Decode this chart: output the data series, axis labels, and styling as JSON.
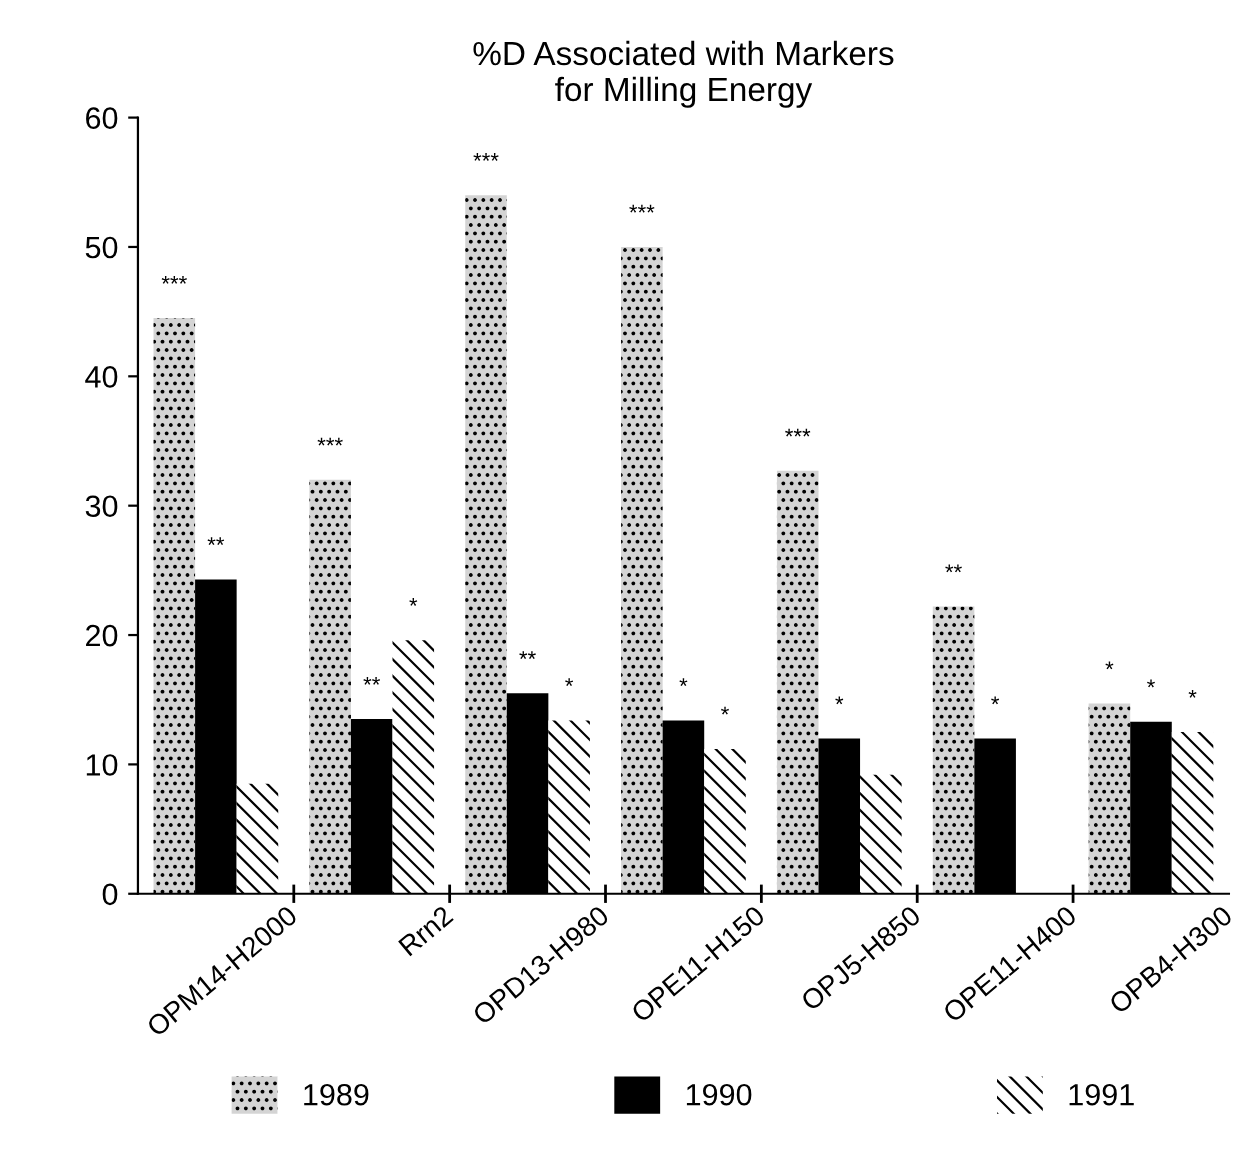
{
  "chart_data": {
    "type": "bar",
    "title": "%D Associated with Markers\nfor Milling Energy",
    "categories": [
      "OPM14-H2000",
      "Rrn2",
      "OPD13-H980",
      "OPE11-H150",
      "OPJ5-H850",
      "OPE11-H400",
      "OPB4-H300"
    ],
    "series": [
      {
        "name": "1989",
        "color": "#d4d4d4",
        "values": [
          44.5,
          32,
          54,
          50,
          32.7,
          22.2,
          14.7
        ],
        "value_labels": [
          "***",
          "***",
          "***",
          "***",
          "***",
          "**",
          "*"
        ]
      },
      {
        "name": "1990",
        "color": "#000000",
        "values": [
          24.3,
          13.5,
          15.5,
          13.4,
          12,
          12,
          13.3
        ],
        "value_labels": [
          "**",
          "**",
          "**",
          "*",
          "*",
          "*",
          "*"
        ]
      },
      {
        "name": "1991",
        "color": "#ffffff",
        "values": [
          8.5,
          19.6,
          13.4,
          11.2,
          9.2,
          null,
          12.5
        ],
        "value_labels": [
          null,
          "*",
          "*",
          "*",
          null,
          null,
          "*"
        ]
      }
    ],
    "ylim": [
      0,
      60
    ],
    "yticks": [
      0,
      10,
      20,
      30,
      40,
      50,
      60
    ],
    "grid": false,
    "legend": "bottom"
  }
}
